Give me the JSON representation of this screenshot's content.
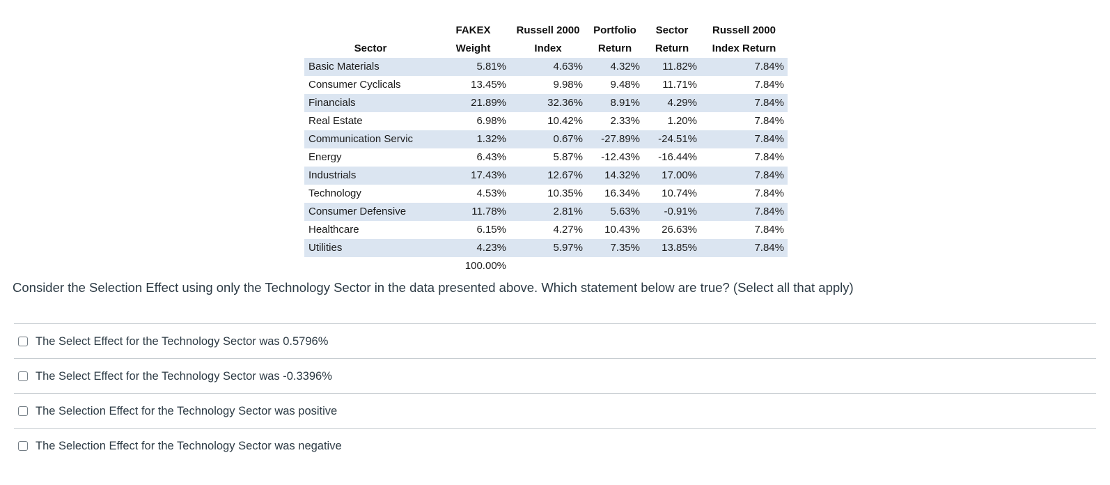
{
  "table": {
    "col_headers": [
      {
        "line1": "",
        "line2": "Sector"
      },
      {
        "line1": "FAKEX",
        "line2": "Weight"
      },
      {
        "line1": "Russell 2000",
        "line2": "Index"
      },
      {
        "line1": "Portfolio",
        "line2": "Return"
      },
      {
        "line1": "Sector",
        "line2": "Return"
      },
      {
        "line1": "Russell 2000",
        "line2": "Index Return"
      }
    ],
    "rows": [
      [
        "Basic Materials",
        "5.81%",
        "4.63%",
        "4.32%",
        "11.82%",
        "7.84%"
      ],
      [
        "Consumer Cyclicals",
        "13.45%",
        "9.98%",
        "9.48%",
        "11.71%",
        "7.84%"
      ],
      [
        "Financials",
        "21.89%",
        "32.36%",
        "8.91%",
        "4.29%",
        "7.84%"
      ],
      [
        "Real Estate",
        "6.98%",
        "10.42%",
        "2.33%",
        "1.20%",
        "7.84%"
      ],
      [
        "Communication Servic",
        "1.32%",
        "0.67%",
        "-27.89%",
        "-24.51%",
        "7.84%"
      ],
      [
        "Energy",
        "6.43%",
        "5.87%",
        "-12.43%",
        "-16.44%",
        "7.84%"
      ],
      [
        "Industrials",
        "17.43%",
        "12.67%",
        "14.32%",
        "17.00%",
        "7.84%"
      ],
      [
        "Technology",
        "4.53%",
        "10.35%",
        "16.34%",
        "10.74%",
        "7.84%"
      ],
      [
        "Consumer Defensive",
        "11.78%",
        "2.81%",
        "5.63%",
        "-0.91%",
        "7.84%"
      ],
      [
        "Healthcare",
        "6.15%",
        "4.27%",
        "10.43%",
        "26.63%",
        "7.84%"
      ],
      [
        "Utilities",
        "4.23%",
        "5.97%",
        "7.35%",
        "13.85%",
        "7.84%"
      ]
    ],
    "total_weight": "100.00%",
    "stripe_color": "#dbe5f1"
  },
  "question": {
    "text": "Consider the Selection Effect using only the Technology Sector in the data presented above. Which statement below are true? (Select all that apply)"
  },
  "options": [
    {
      "label": "The Select Effect for the Technology Sector was 0.5796%",
      "checked": false
    },
    {
      "label": "The Select Effect for the Technology Sector was -0.3396%",
      "checked": false
    },
    {
      "label": "The Selection Effect for the Technology Sector was positive",
      "checked": false
    },
    {
      "label": "The Selection Effect for the Technology Sector was negative",
      "checked": false
    }
  ],
  "colors": {
    "row_stripe": "#dbe5f1",
    "body_text": "#2d3b45",
    "divider": "#c7cdd1",
    "table_text": "#1c1c1c"
  }
}
